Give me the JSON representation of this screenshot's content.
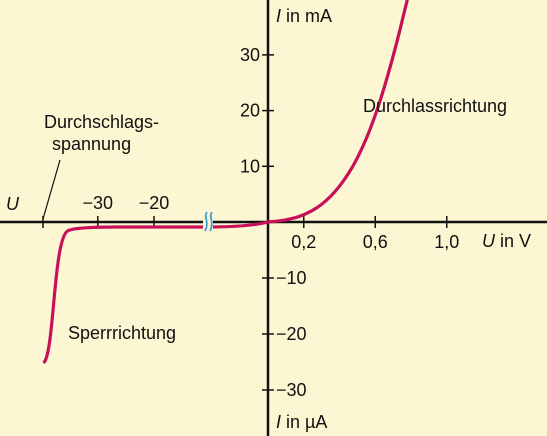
{
  "chart_data": {
    "type": "line",
    "title": "",
    "x_axis": {
      "label_var": "U",
      "label_unit": " in V",
      "forward_ticks": [
        "0,2",
        "0,6",
        "1,0"
      ],
      "forward_tick_values": [
        0.2,
        0.6,
        1.0
      ],
      "reverse_ticks": [
        "−30",
        "−20"
      ],
      "reverse_tick_values": [
        -30,
        -20
      ],
      "reverse_end_label": "U",
      "axis_break": true
    },
    "y_axis": {
      "upper_label_var": "I",
      "upper_label_unit": " in mA",
      "upper_ticks": [
        "10",
        "20",
        "30"
      ],
      "upper_tick_values": [
        10,
        20,
        30
      ],
      "lower_label_var": "I",
      "lower_label_unit": " in µA",
      "lower_ticks": [
        "−10",
        "−20",
        "−30"
      ],
      "lower_tick_values": [
        -10,
        -20,
        -30
      ]
    },
    "series": [
      {
        "color": "#c8105a",
        "forward_points": [
          [
            0,
            0
          ],
          [
            0.1,
            0.3
          ],
          [
            0.2,
            1.2
          ],
          [
            0.3,
            3.0
          ],
          [
            0.4,
            6.2
          ],
          [
            0.5,
            11.2
          ],
          [
            0.6,
            18.8
          ],
          [
            0.7,
            29.5
          ],
          [
            0.78,
            40
          ]
        ],
        "reverse_points": [
          [
            -20,
            -0.7
          ],
          [
            -30,
            -0.7
          ],
          [
            -33,
            -1
          ],
          [
            -35.4,
            -2.5
          ],
          [
            -37,
            -10
          ],
          [
            -38.5,
            -20
          ],
          [
            -39.5,
            -25
          ]
        ]
      }
    ],
    "annotations": {
      "breakdown": "Durchschlags-\nspannung",
      "forward_region": "Durchlassrichtung",
      "reverse_region": "Sperrrichtung"
    }
  },
  "colors": {
    "background": "#fdf6d3",
    "curve": "#c8105a",
    "axis_break": "#3aa0d8",
    "axes": "#111111"
  }
}
